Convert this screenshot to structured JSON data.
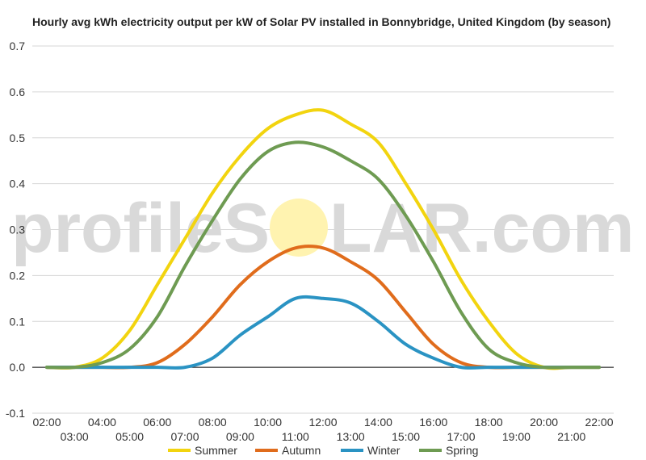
{
  "chart_data": {
    "type": "line",
    "title": "Hourly avg kWh electricity output per kW of Solar PV installed in Bonnybridge, United Kingdom (by season)",
    "xlabel": "",
    "ylabel": "",
    "ylim": [
      -0.1,
      0.7
    ],
    "yticks": [
      "-0.1",
      "0.0",
      "0.1",
      "0.2",
      "0.3",
      "0.4",
      "0.5",
      "0.6",
      "0.7"
    ],
    "grid": true,
    "legend_position": "bottom",
    "x": [
      "02:00",
      "03:00",
      "04:00",
      "05:00",
      "06:00",
      "07:00",
      "08:00",
      "09:00",
      "10:00",
      "11:00",
      "12:00",
      "13:00",
      "14:00",
      "15:00",
      "16:00",
      "17:00",
      "18:00",
      "19:00",
      "20:00",
      "21:00",
      "22:00"
    ],
    "series": [
      {
        "name": "Summer",
        "color": "#f2d40f",
        "values": [
          0.0,
          0.0,
          0.02,
          0.08,
          0.18,
          0.28,
          0.38,
          0.46,
          0.52,
          0.55,
          0.56,
          0.53,
          0.49,
          0.4,
          0.3,
          0.19,
          0.1,
          0.03,
          0.0,
          0.0,
          0.0
        ]
      },
      {
        "name": "Autumn",
        "color": "#e06c1c",
        "values": [
          0.0,
          0.0,
          0.0,
          0.0,
          0.01,
          0.05,
          0.11,
          0.18,
          0.23,
          0.26,
          0.26,
          0.23,
          0.19,
          0.12,
          0.05,
          0.01,
          0.0,
          0.0,
          0.0,
          0.0,
          0.0
        ]
      },
      {
        "name": "Winter",
        "color": "#2a93c3",
        "values": [
          0.0,
          0.0,
          0.0,
          0.0,
          0.0,
          0.0,
          0.02,
          0.07,
          0.11,
          0.15,
          0.15,
          0.14,
          0.1,
          0.05,
          0.02,
          0.0,
          0.0,
          0.0,
          0.0,
          0.0,
          0.0
        ]
      },
      {
        "name": "Spring",
        "color": "#6e9b52",
        "values": [
          0.0,
          0.0,
          0.01,
          0.04,
          0.11,
          0.22,
          0.32,
          0.41,
          0.47,
          0.49,
          0.48,
          0.45,
          0.41,
          0.33,
          0.23,
          0.12,
          0.04,
          0.01,
          0.0,
          0.0,
          0.0
        ]
      }
    ]
  },
  "watermark": {
    "text_left": "profileS",
    "text_right": "LAR.com",
    "sun_color": "#fff3b0"
  }
}
